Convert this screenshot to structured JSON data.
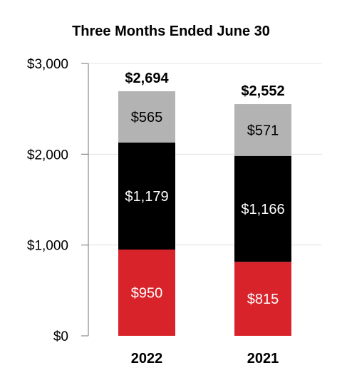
{
  "chart_data": {
    "type": "bar",
    "stacked": true,
    "title": "Three Months Ended June 30",
    "xlabel": "",
    "ylabel": "",
    "ylim": [
      0,
      3000
    ],
    "y_ticks": [
      0,
      1000,
      2000,
      3000
    ],
    "y_tick_labels": [
      "$0",
      "$1,000",
      "$2,000",
      "$3,000"
    ],
    "grid": true,
    "categories": [
      "2022",
      "2021"
    ],
    "series": [
      {
        "values": [
          950,
          815
        ],
        "labels": [
          "$950",
          "$815"
        ],
        "color": "#d8232a",
        "label_color": "#ffffff"
      },
      {
        "values": [
          1179,
          1166
        ],
        "labels": [
          "$1,179",
          "$1,166"
        ],
        "color": "#000000",
        "label_color": "#ffffff"
      },
      {
        "values": [
          565,
          571
        ],
        "labels": [
          "$565",
          "$571"
        ],
        "color": "#b3b3b3",
        "label_color": "#000000"
      }
    ],
    "totals": [
      2694,
      2552
    ],
    "total_labels": [
      "$2,694",
      "$2,552"
    ]
  }
}
